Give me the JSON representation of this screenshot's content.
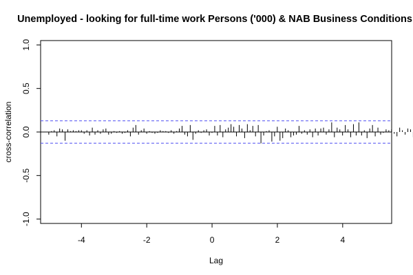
{
  "chart_data": {
    "type": "bar",
    "title": "Unemployed - looking for full-time work Persons ('000) & NAB Business Conditions",
    "xlabel": "Lag",
    "ylabel": "cross-correlation",
    "xlim": [
      -5.25,
      5.5
    ],
    "ylim": [
      -1.05,
      1.05
    ],
    "x_ticks": [
      -4,
      -2,
      0,
      2,
      4
    ],
    "y_ticks": [
      -1.0,
      -0.5,
      0.0,
      0.5,
      1.0
    ],
    "y_tick_labels": [
      "-1.0",
      "-0.5",
      "0.0",
      "0.5",
      "1.0"
    ],
    "confidence_limit": 0.128,
    "lag_step": 0.0833,
    "series": [
      {
        "x_start": -5.0,
        "values": [
          -0.03,
          0.01,
          0.02,
          -0.05,
          0.04,
          0.03,
          -0.1,
          0.03,
          0.01,
          0.02,
          0.01,
          0.02,
          0.02,
          -0.02,
          0.02,
          -0.04,
          0.05,
          -0.03,
          0.02,
          -0.02,
          0.03,
          0.04,
          -0.03,
          -0.02,
          0.01,
          -0.01,
          0.01,
          -0.02,
          -0.01,
          0.02,
          -0.05,
          0.05,
          0.08,
          -0.03,
          0.02,
          0.04,
          -0.02,
          0.01,
          -0.01,
          -0.02,
          -0.01,
          0.02,
          0.01,
          0.01,
          -0.01,
          0.02,
          -0.02,
          0.01,
          0.04,
          0.07,
          -0.03,
          -0.05,
          0.08,
          -0.09,
          -0.02,
          0.02,
          -0.01,
          0.02,
          0.03,
          -0.04,
          -0.01,
          0.07,
          -0.04,
          0.08,
          -0.06,
          0.03,
          0.05,
          0.09,
          0.06,
          -0.05,
          0.08,
          0.04,
          -0.07,
          0.09,
          0.02,
          0.07,
          -0.05,
          0.08,
          -0.13,
          -0.04,
          0.01,
          0.02,
          -0.11,
          -0.05,
          0.06,
          -0.1,
          -0.07,
          0.04,
          0.02,
          -0.06,
          -0.04,
          -0.03,
          0.07,
          -0.02,
          0.02,
          -0.03,
          0.03,
          -0.06,
          0.04,
          -0.04,
          0.04,
          0.05,
          -0.03,
          0.03,
          0.11,
          -0.06,
          0.05,
          0.03,
          -0.04,
          0.08,
          0.03,
          -0.06,
          0.09,
          -0.04,
          0.11,
          -0.04,
          0.02,
          -0.07,
          0.04,
          0.08,
          -0.05,
          0.05,
          -0.03,
          -0.01,
          0.03,
          0.02,
          0.03,
          -0.02,
          -0.05,
          0.05,
          0.02,
          -0.03,
          0.04,
          0.03,
          -0.06,
          0.03,
          0.02,
          -0.03,
          0.04,
          -0.05,
          0.07,
          -0.08,
          -0.03,
          0.02,
          0.09,
          -0.12,
          0.03,
          -0.05,
          0.02,
          0.03,
          -0.02,
          0.02,
          0.01,
          -0.04,
          0.02,
          0.01,
          -0.01,
          0.01,
          0.02
        ]
      }
    ],
    "colors": {
      "bars": "#000000",
      "ci_lines": "#4d4df2",
      "zero_line": "#000000"
    },
    "grid": false,
    "legend": "none"
  }
}
